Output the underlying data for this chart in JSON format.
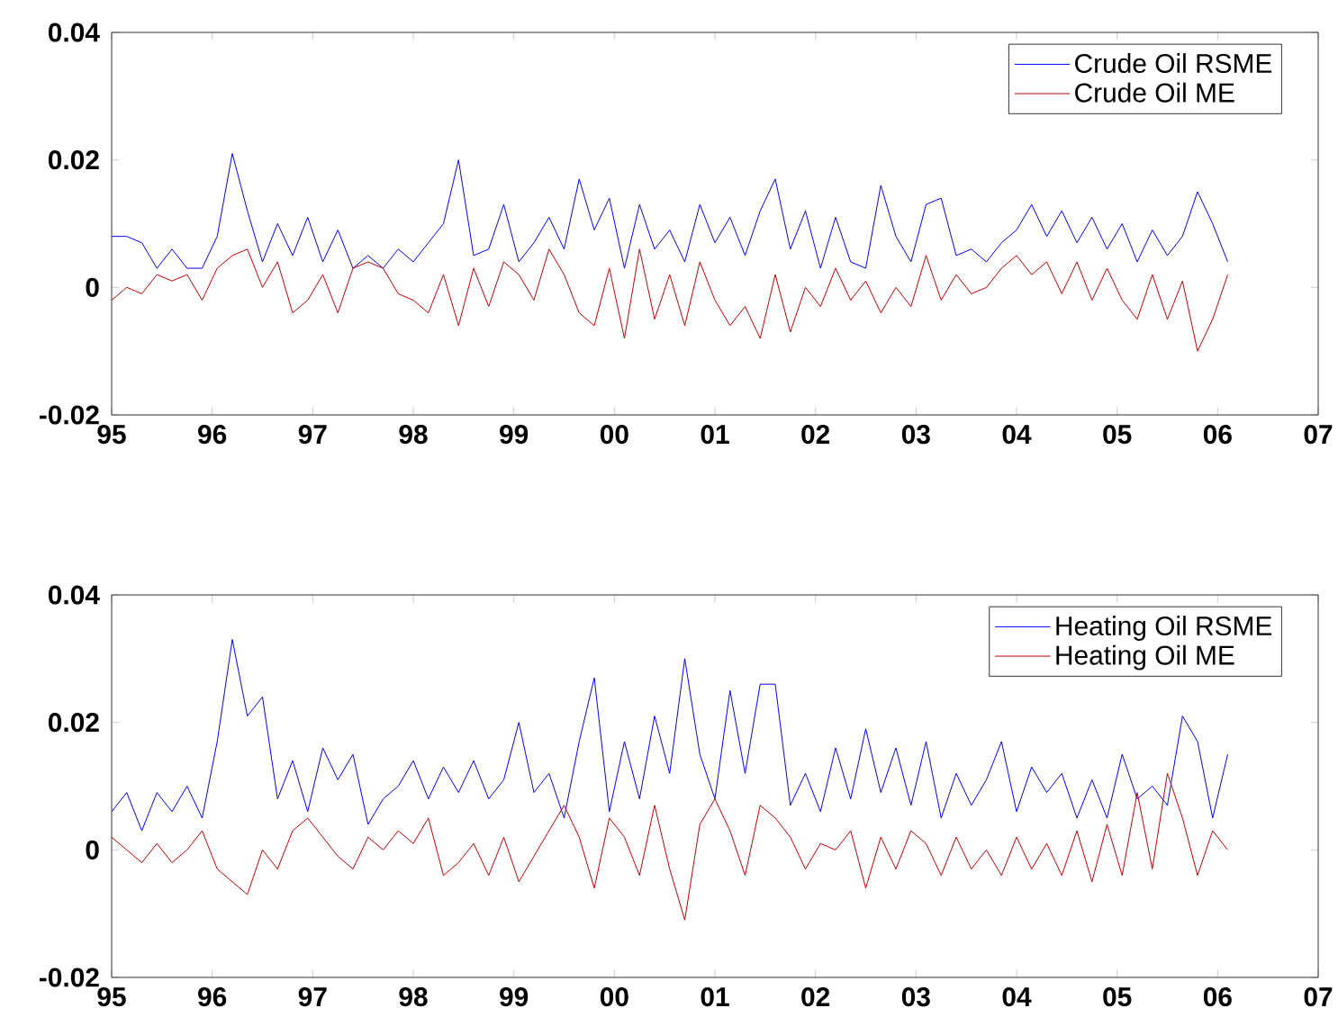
{
  "chart_data": [
    {
      "type": "line",
      "xlim": [
        1995,
        2007
      ],
      "ylim": [
        -0.02,
        0.04
      ],
      "yticks": [
        -0.02,
        0,
        0.02,
        0.04
      ],
      "xticks": [
        {
          "value": 1995,
          "label": "95"
        },
        {
          "value": 1996,
          "label": "96"
        },
        {
          "value": 1997,
          "label": "97"
        },
        {
          "value": 1998,
          "label": "98"
        },
        {
          "value": 1999,
          "label": "99"
        },
        {
          "value": 2000,
          "label": "00"
        },
        {
          "value": 2001,
          "label": "01"
        },
        {
          "value": 2002,
          "label": "02"
        },
        {
          "value": 2003,
          "label": "03"
        },
        {
          "value": 2004,
          "label": "04"
        },
        {
          "value": 2005,
          "label": "05"
        },
        {
          "value": 2006,
          "label": "06"
        },
        {
          "value": 2007,
          "label": "07"
        }
      ],
      "legend": "top right",
      "grid": false,
      "marker": "none",
      "line_style": "solid",
      "x": [
        1995.0,
        1995.15,
        1995.3,
        1995.45,
        1995.6,
        1995.75,
        1995.9,
        1996.05,
        1996.2,
        1996.35,
        1996.5,
        1996.65,
        1996.8,
        1996.95,
        1997.1,
        1997.25,
        1997.4,
        1997.55,
        1997.7,
        1997.85,
        1998.0,
        1998.15,
        1998.3,
        1998.45,
        1998.6,
        1998.75,
        1998.9,
        1999.05,
        1999.2,
        1999.35,
        1999.5,
        1999.65,
        1999.8,
        1999.95,
        2000.1,
        2000.25,
        2000.4,
        2000.55,
        2000.7,
        2000.85,
        2001.0,
        2001.15,
        2001.3,
        2001.45,
        2001.6,
        2001.75,
        2001.9,
        2002.05,
        2002.2,
        2002.35,
        2002.5,
        2002.65,
        2002.8,
        2002.95,
        2003.1,
        2003.25,
        2003.4,
        2003.55,
        2003.7,
        2003.85,
        2004.0,
        2004.15,
        2004.3,
        2004.45,
        2004.6,
        2004.75,
        2004.9,
        2005.05,
        2005.2,
        2005.35,
        2005.5,
        2005.65,
        2005.8,
        2005.95,
        2006.1
      ],
      "series": [
        {
          "name": "Crude Oil RSME",
          "color": "#0000ff",
          "values": [
            0.008,
            0.008,
            0.007,
            0.003,
            0.006,
            0.003,
            0.003,
            0.008,
            0.021,
            0.012,
            0.004,
            0.01,
            0.005,
            0.011,
            0.004,
            0.009,
            0.003,
            0.005,
            0.003,
            0.006,
            0.004,
            0.007,
            0.01,
            0.02,
            0.005,
            0.006,
            0.013,
            0.004,
            0.007,
            0.011,
            0.006,
            0.017,
            0.009,
            0.014,
            0.003,
            0.013,
            0.006,
            0.009,
            0.004,
            0.013,
            0.007,
            0.011,
            0.005,
            0.012,
            0.017,
            0.006,
            0.012,
            0.003,
            0.011,
            0.004,
            0.003,
            0.016,
            0.008,
            0.004,
            0.013,
            0.014,
            0.005,
            0.006,
            0.004,
            0.007,
            0.009,
            0.013,
            0.008,
            0.012,
            0.007,
            0.011,
            0.006,
            0.01,
            0.004,
            0.009,
            0.005,
            0.008,
            0.015,
            0.01,
            0.004
          ]
        },
        {
          "name": "Crude Oil ME",
          "color": "#c00000",
          "values": [
            -0.002,
            0.0,
            -0.001,
            0.002,
            0.001,
            0.002,
            -0.002,
            0.003,
            0.005,
            0.006,
            0.0,
            0.004,
            -0.004,
            -0.002,
            0.002,
            -0.004,
            0.003,
            0.004,
            0.003,
            -0.001,
            -0.002,
            -0.004,
            0.002,
            -0.006,
            0.003,
            -0.003,
            0.004,
            0.002,
            -0.002,
            0.006,
            0.002,
            -0.004,
            -0.006,
            0.003,
            -0.008,
            0.006,
            -0.005,
            0.002,
            -0.006,
            0.004,
            -0.002,
            -0.006,
            -0.003,
            -0.008,
            0.002,
            -0.007,
            0.0,
            -0.003,
            0.003,
            -0.002,
            0.001,
            -0.004,
            0.0,
            -0.003,
            0.005,
            -0.002,
            0.002,
            -0.001,
            0.0,
            0.003,
            0.005,
            0.002,
            0.004,
            -0.001,
            0.004,
            -0.002,
            0.003,
            -0.002,
            -0.005,
            0.002,
            -0.005,
            0.001,
            -0.01,
            -0.005,
            0.002
          ]
        }
      ]
    },
    {
      "type": "line",
      "xlim": [
        1995,
        2007
      ],
      "ylim": [
        -0.02,
        0.04
      ],
      "yticks": [
        -0.02,
        0,
        0.02,
        0.04
      ],
      "xticks": [
        {
          "value": 1995,
          "label": "95"
        },
        {
          "value": 1996,
          "label": "96"
        },
        {
          "value": 1997,
          "label": "97"
        },
        {
          "value": 1998,
          "label": "98"
        },
        {
          "value": 1999,
          "label": "99"
        },
        {
          "value": 2000,
          "label": "00"
        },
        {
          "value": 2001,
          "label": "01"
        },
        {
          "value": 2002,
          "label": "02"
        },
        {
          "value": 2003,
          "label": "03"
        },
        {
          "value": 2004,
          "label": "04"
        },
        {
          "value": 2005,
          "label": "05"
        },
        {
          "value": 2006,
          "label": "06"
        },
        {
          "value": 2007,
          "label": "07"
        }
      ],
      "legend": "top right",
      "grid": false,
      "marker": "none",
      "line_style": "solid",
      "x": [
        1995.0,
        1995.15,
        1995.3,
        1995.45,
        1995.6,
        1995.75,
        1995.9,
        1996.05,
        1996.2,
        1996.35,
        1996.5,
        1996.65,
        1996.8,
        1996.95,
        1997.1,
        1997.25,
        1997.4,
        1997.55,
        1997.7,
        1997.85,
        1998.0,
        1998.15,
        1998.3,
        1998.45,
        1998.6,
        1998.75,
        1998.9,
        1999.05,
        1999.2,
        1999.35,
        1999.5,
        1999.65,
        1999.8,
        1999.95,
        2000.1,
        2000.25,
        2000.4,
        2000.55,
        2000.7,
        2000.85,
        2001.0,
        2001.15,
        2001.3,
        2001.45,
        2001.6,
        2001.75,
        2001.9,
        2002.05,
        2002.2,
        2002.35,
        2002.5,
        2002.65,
        2002.8,
        2002.95,
        2003.1,
        2003.25,
        2003.4,
        2003.55,
        2003.7,
        2003.85,
        2004.0,
        2004.15,
        2004.3,
        2004.45,
        2004.6,
        2004.75,
        2004.9,
        2005.05,
        2005.2,
        2005.35,
        2005.5,
        2005.65,
        2005.8,
        2005.95,
        2006.1
      ],
      "series": [
        {
          "name": "Heating Oil RSME",
          "color": "#0000ff",
          "values": [
            0.006,
            0.009,
            0.003,
            0.009,
            0.006,
            0.01,
            0.005,
            0.017,
            0.033,
            0.021,
            0.024,
            0.008,
            0.014,
            0.006,
            0.016,
            0.011,
            0.015,
            0.004,
            0.008,
            0.01,
            0.014,
            0.008,
            0.013,
            0.009,
            0.014,
            0.008,
            0.011,
            0.02,
            0.009,
            0.012,
            0.005,
            0.017,
            0.027,
            0.006,
            0.017,
            0.008,
            0.021,
            0.012,
            0.03,
            0.015,
            0.008,
            0.025,
            0.012,
            0.026,
            0.026,
            0.007,
            0.012,
            0.006,
            0.016,
            0.008,
            0.019,
            0.009,
            0.016,
            0.007,
            0.017,
            0.005,
            0.012,
            0.007,
            0.011,
            0.017,
            0.006,
            0.013,
            0.009,
            0.012,
            0.005,
            0.011,
            0.005,
            0.015,
            0.008,
            0.01,
            0.007,
            0.021,
            0.017,
            0.005,
            0.015
          ]
        },
        {
          "name": "Heating Oil ME",
          "color": "#c00000",
          "values": [
            0.002,
            0.0,
            -0.002,
            0.001,
            -0.002,
            0.0,
            0.003,
            -0.003,
            -0.005,
            -0.007,
            0.0,
            -0.003,
            0.003,
            0.005,
            0.002,
            -0.001,
            -0.003,
            0.002,
            0.0,
            0.003,
            0.001,
            0.005,
            -0.004,
            -0.002,
            0.001,
            -0.004,
            0.002,
            -0.005,
            -0.001,
            0.003,
            0.007,
            0.002,
            -0.006,
            0.005,
            0.002,
            -0.004,
            0.007,
            -0.003,
            -0.011,
            0.004,
            0.008,
            0.003,
            -0.004,
            0.007,
            0.005,
            0.002,
            -0.003,
            0.001,
            0.0,
            0.003,
            -0.006,
            0.002,
            -0.003,
            0.003,
            0.001,
            -0.004,
            0.002,
            -0.003,
            0.0,
            -0.004,
            0.002,
            -0.003,
            0.001,
            -0.004,
            0.003,
            -0.005,
            0.004,
            -0.004,
            0.009,
            -0.003,
            0.012,
            0.005,
            -0.004,
            0.003,
            0.0
          ]
        }
      ]
    }
  ]
}
